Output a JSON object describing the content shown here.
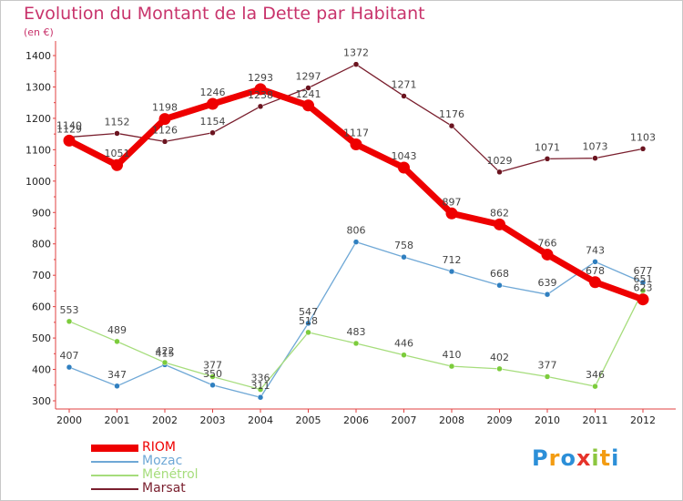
{
  "chart_data": {
    "type": "line",
    "title": "Evolution du Montant de la Dette par Habitant",
    "subtitle": "(en €)",
    "x": [
      "2000",
      "2001",
      "2002",
      "2003",
      "2004",
      "2005",
      "2006",
      "2007",
      "2008",
      "2009",
      "2010",
      "2011",
      "2012"
    ],
    "ylim": [
      300,
      1400
    ],
    "yticks": [
      300,
      400,
      500,
      600,
      700,
      800,
      900,
      1000,
      1100,
      1200,
      1300,
      1400
    ],
    "grid": false,
    "legend": "bottom-left",
    "series": [
      {
        "name": "Marsat",
        "color": "#7a1f2e",
        "point_color": "#6b1420",
        "values": [
          1140,
          1152,
          1126,
          1154,
          1238,
          1297,
          1372,
          1271,
          1176,
          1029,
          1071,
          1073,
          1103
        ]
      },
      {
        "name": "Mozac",
        "color": "#6fa8d6",
        "point_color": "#2f7fc0",
        "values": [
          407,
          347,
          415,
          350,
          311,
          547,
          806,
          758,
          712,
          668,
          639,
          743,
          677
        ]
      },
      {
        "name": "Ménétrol",
        "color": "#a6dd7c",
        "point_color": "#7ccc3c",
        "values": [
          553,
          489,
          422,
          377,
          336,
          518,
          483,
          446,
          410,
          402,
          377,
          346,
          651
        ]
      },
      {
        "name": "RIOM",
        "color": "#ee0000",
        "point_color": "#ee0000",
        "values": [
          1129,
          1051,
          1198,
          1246,
          1293,
          1241,
          1117,
          1043,
          897,
          862,
          766,
          678,
          623
        ]
      }
    ]
  },
  "legend_items": [
    {
      "label": "RIOM",
      "color": "#ee0000"
    },
    {
      "label": "Mozac",
      "color": "#6fa8d6"
    },
    {
      "label": "Ménétrol",
      "color": "#a6dd7c"
    },
    {
      "label": "Marsat",
      "color": "#7a1f2e"
    }
  ],
  "brand": {
    "letters": [
      "P",
      "r",
      "o",
      "x",
      "i",
      "t",
      "i"
    ],
    "colors": [
      "#2c8fd8",
      "#f39c12",
      "#2c8fd8",
      "#e6332a",
      "#8cc63f",
      "#f39c12",
      "#2c8fd8"
    ]
  }
}
